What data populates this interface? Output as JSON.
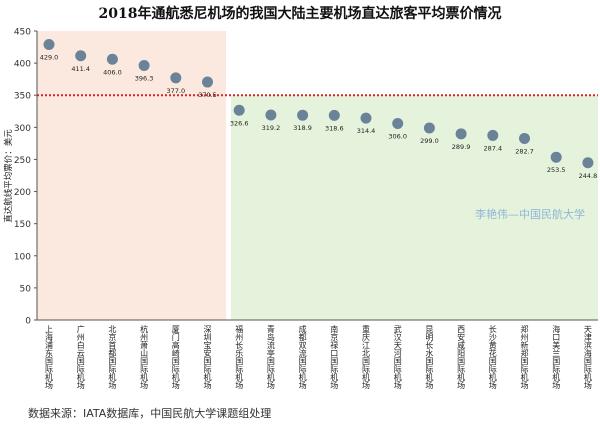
{
  "chart_data": {
    "type": "scatter",
    "title": "2018年通航悉尼机场的我国大陆主要机场直达旅客平均票价情况",
    "ylabel": "直达航线平均票价：美元",
    "xlabel": "",
    "ylim": [
      0,
      450
    ],
    "yticks": [
      0,
      50,
      100,
      150,
      200,
      250,
      300,
      350,
      400,
      450
    ],
    "reference_line": 350,
    "categories": [
      "上海浦东国际机场",
      "广州白云国际机场",
      "北京首都国际机场",
      "杭州萧山国际机场",
      "厦门高崎国际机场",
      "深圳宝安国际机场",
      "福州长乐国际机场",
      "青岛流亭国际机场",
      "成都双流国际机场",
      "南京禄口国际机场",
      "重庆江北国际机场",
      "武汉天河国际机场",
      "昆明长水国际机场",
      "西安咸阳国际机场",
      "长沙黄花国际机场",
      "郑州新郑国际机场",
      "海口美兰国际机场",
      "天津滨海国际机场"
    ],
    "values": [
      429.0,
      411.4,
      406.0,
      396.3,
      377.0,
      370.5,
      326.6,
      319.2,
      318.9,
      318.6,
      314.4,
      306.0,
      299.0,
      289.9,
      287.4,
      282.7,
      253.5,
      244.8
    ],
    "value_labels": [
      "429.0",
      "411.4",
      "406.0",
      "396.3",
      "377.0",
      "370.5",
      "326.6",
      "319.2",
      "318.9",
      "318.6",
      "314.4",
      "306.0",
      "299.0",
      "289.9",
      "287.4",
      "282.7",
      "253.5",
      "244.8"
    ],
    "grid": false,
    "watermark": "李艳伟—中国民航大学",
    "colors": {
      "marker": "#6b8399",
      "reference_line": "#d62728",
      "high_region": "#fbe9df",
      "low_region": "#e6f3dc",
      "watermark": "#8fb6d6"
    }
  },
  "footer": {
    "source": "数据来源：IATA数据库，中国民航大学课题组处理"
  }
}
